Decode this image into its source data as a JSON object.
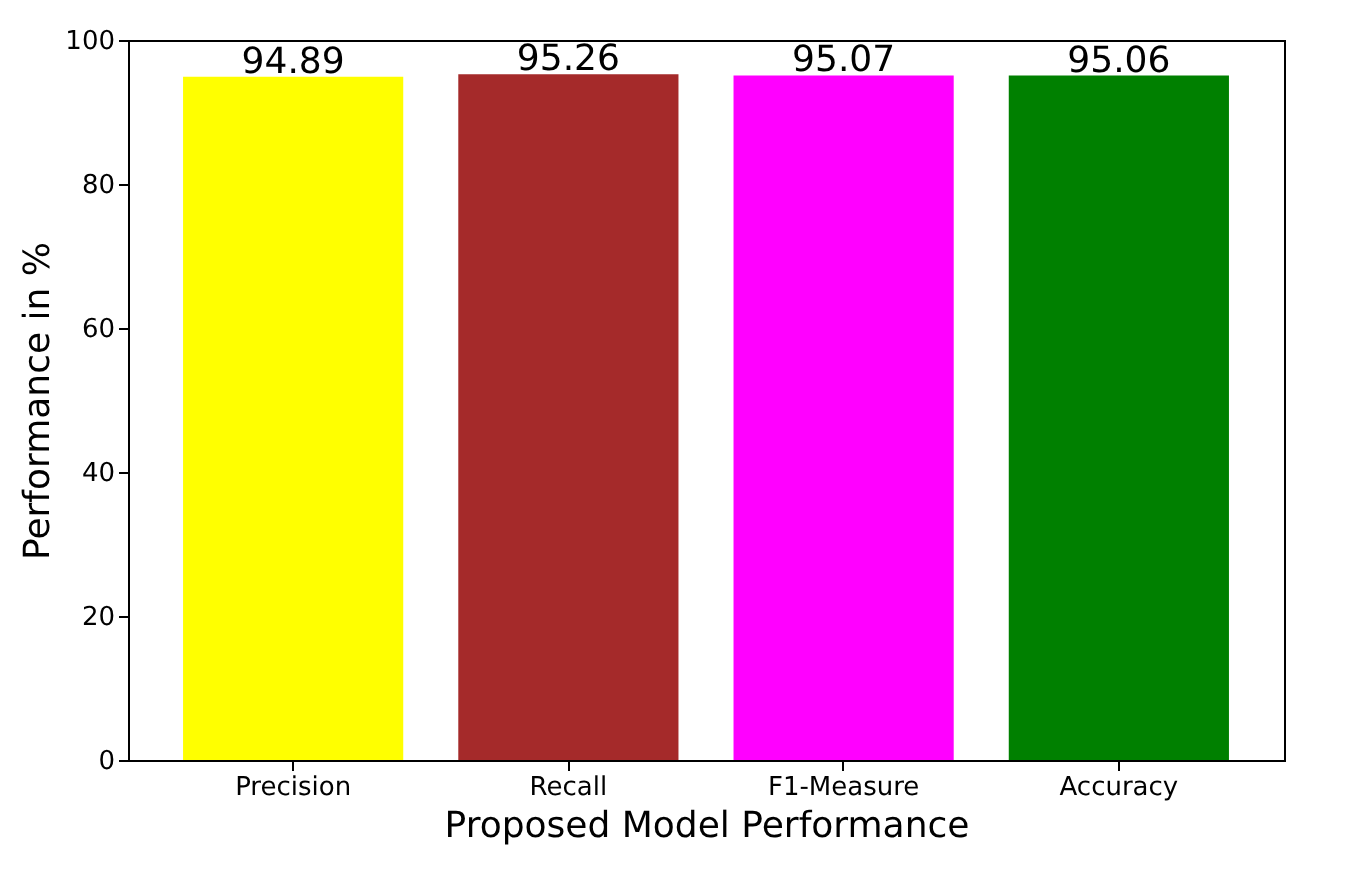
{
  "chart_data": {
    "type": "bar",
    "xlabel": "Proposed Model Performance",
    "ylabel": "Performance in %",
    "categories": [
      "Precision",
      "Recall",
      "F1-Measure",
      "Accuracy"
    ],
    "values": [
      94.89,
      95.26,
      95.07,
      95.06
    ],
    "colors": [
      "#ffff00",
      "#a52a2a",
      "#ff00ff",
      "#008000"
    ],
    "ylim": [
      0,
      100
    ],
    "yticks": [
      0,
      20,
      40,
      60,
      80,
      100
    ],
    "grid": false,
    "data_labels": true
  }
}
